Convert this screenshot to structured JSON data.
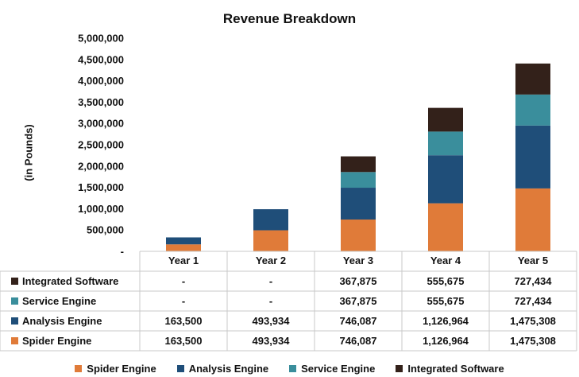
{
  "chart_data": {
    "type": "bar",
    "stacked": true,
    "title": "Revenue Breakdown",
    "ylabel": "(in Pounds)",
    "xlabel": "",
    "ylim": [
      0,
      5000000
    ],
    "yticks": [
      0,
      500000,
      1000000,
      1500000,
      2000000,
      2500000,
      3000000,
      3500000,
      4000000,
      4500000,
      5000000
    ],
    "ytick_labels": [
      "-",
      "500,000",
      "1,000,000",
      "1,500,000",
      "2,000,000",
      "2,500,000",
      "3,000,000",
      "3,500,000",
      "4,000,000",
      "4,500,000",
      "5,000,000"
    ],
    "categories": [
      "Year 1",
      "Year 2",
      "Year 3",
      "Year 4",
      "Year 5"
    ],
    "series": [
      {
        "name": "Spider Engine",
        "color": "#E07B39",
        "values": [
          163500,
          493934,
          746087,
          1126964,
          1475308
        ],
        "labels": [
          "163,500",
          "493,934",
          "746,087",
          "1,126,964",
          "1,475,308"
        ]
      },
      {
        "name": "Analysis Engine",
        "color": "#1F4E79",
        "values": [
          163500,
          493934,
          746087,
          1126964,
          1475308
        ],
        "labels": [
          "163,500",
          "493,934",
          "746,087",
          "1,126,964",
          "1,475,308"
        ]
      },
      {
        "name": "Service Engine",
        "color": "#3A8E9C",
        "values": [
          0,
          0,
          367875,
          555675,
          727434
        ],
        "labels": [
          "-",
          "-",
          "367,875",
          "555,675",
          "727,434"
        ]
      },
      {
        "name": "Integrated Software",
        "color": "#33211A",
        "values": [
          0,
          0,
          367875,
          555675,
          727434
        ],
        "labels": [
          "-",
          "-",
          "367,875",
          "555,675",
          "727,434"
        ]
      }
    ],
    "table_row_order": [
      3,
      2,
      1,
      0
    ],
    "legend_position": "bottom",
    "grid": false
  }
}
